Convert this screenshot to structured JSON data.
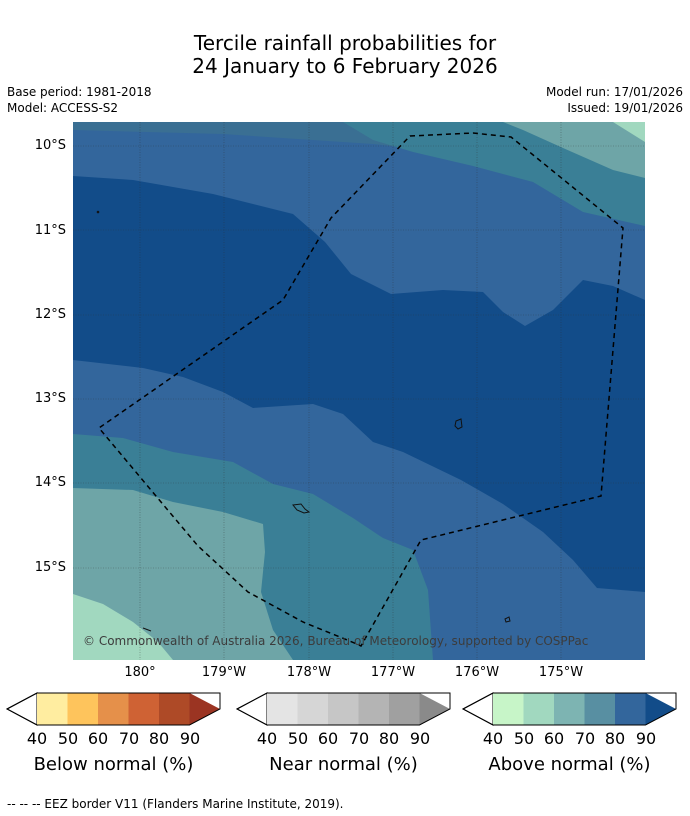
{
  "title": {
    "line1": "Tercile rainfall probabilities for",
    "line2": "24 January to 6 February 2026"
  },
  "meta": {
    "base_period": "Base period: 1981-2018",
    "model": "Model: ACCESS-S2",
    "model_run": "Model run: 17/01/2026",
    "issued": "Issued: 19/01/2026"
  },
  "map": {
    "lat_labels": [
      "10°S",
      "11°S",
      "12°S",
      "13°S",
      "14°S",
      "15°S"
    ],
    "lon_labels": [
      "180°",
      "179°W",
      "178°W",
      "177°W",
      "176°W",
      "175°W"
    ],
    "copyright": "© Commonwealth of Australia 2026, Bureau of Meteorology, supported by COSPPac"
  },
  "legend": {
    "ticks": [
      "40",
      "50",
      "60",
      "70",
      "80",
      "90"
    ],
    "below": {
      "title": "Below normal (%)",
      "colors": [
        "#ffeda0",
        "#fec45c",
        "#e5904a",
        "#cf6234",
        "#ae4a27",
        "#9b3422"
      ]
    },
    "near": {
      "title": "Near normal (%)",
      "colors": [
        "#e4e4e4",
        "#d6d6d6",
        "#c6c6c6",
        "#b4b4b4",
        "#a0a0a0",
        "#8a8a8a"
      ]
    },
    "above": {
      "title": "Above normal (%)",
      "colors": [
        "#c7f5c8",
        "#a1d8bf",
        "#7db4b2",
        "#588fa2",
        "#33669c",
        "#124c89"
      ]
    }
  },
  "footnote": "--  --  -- EEZ border V11 (Flanders Marine Institute, 2019)."
}
